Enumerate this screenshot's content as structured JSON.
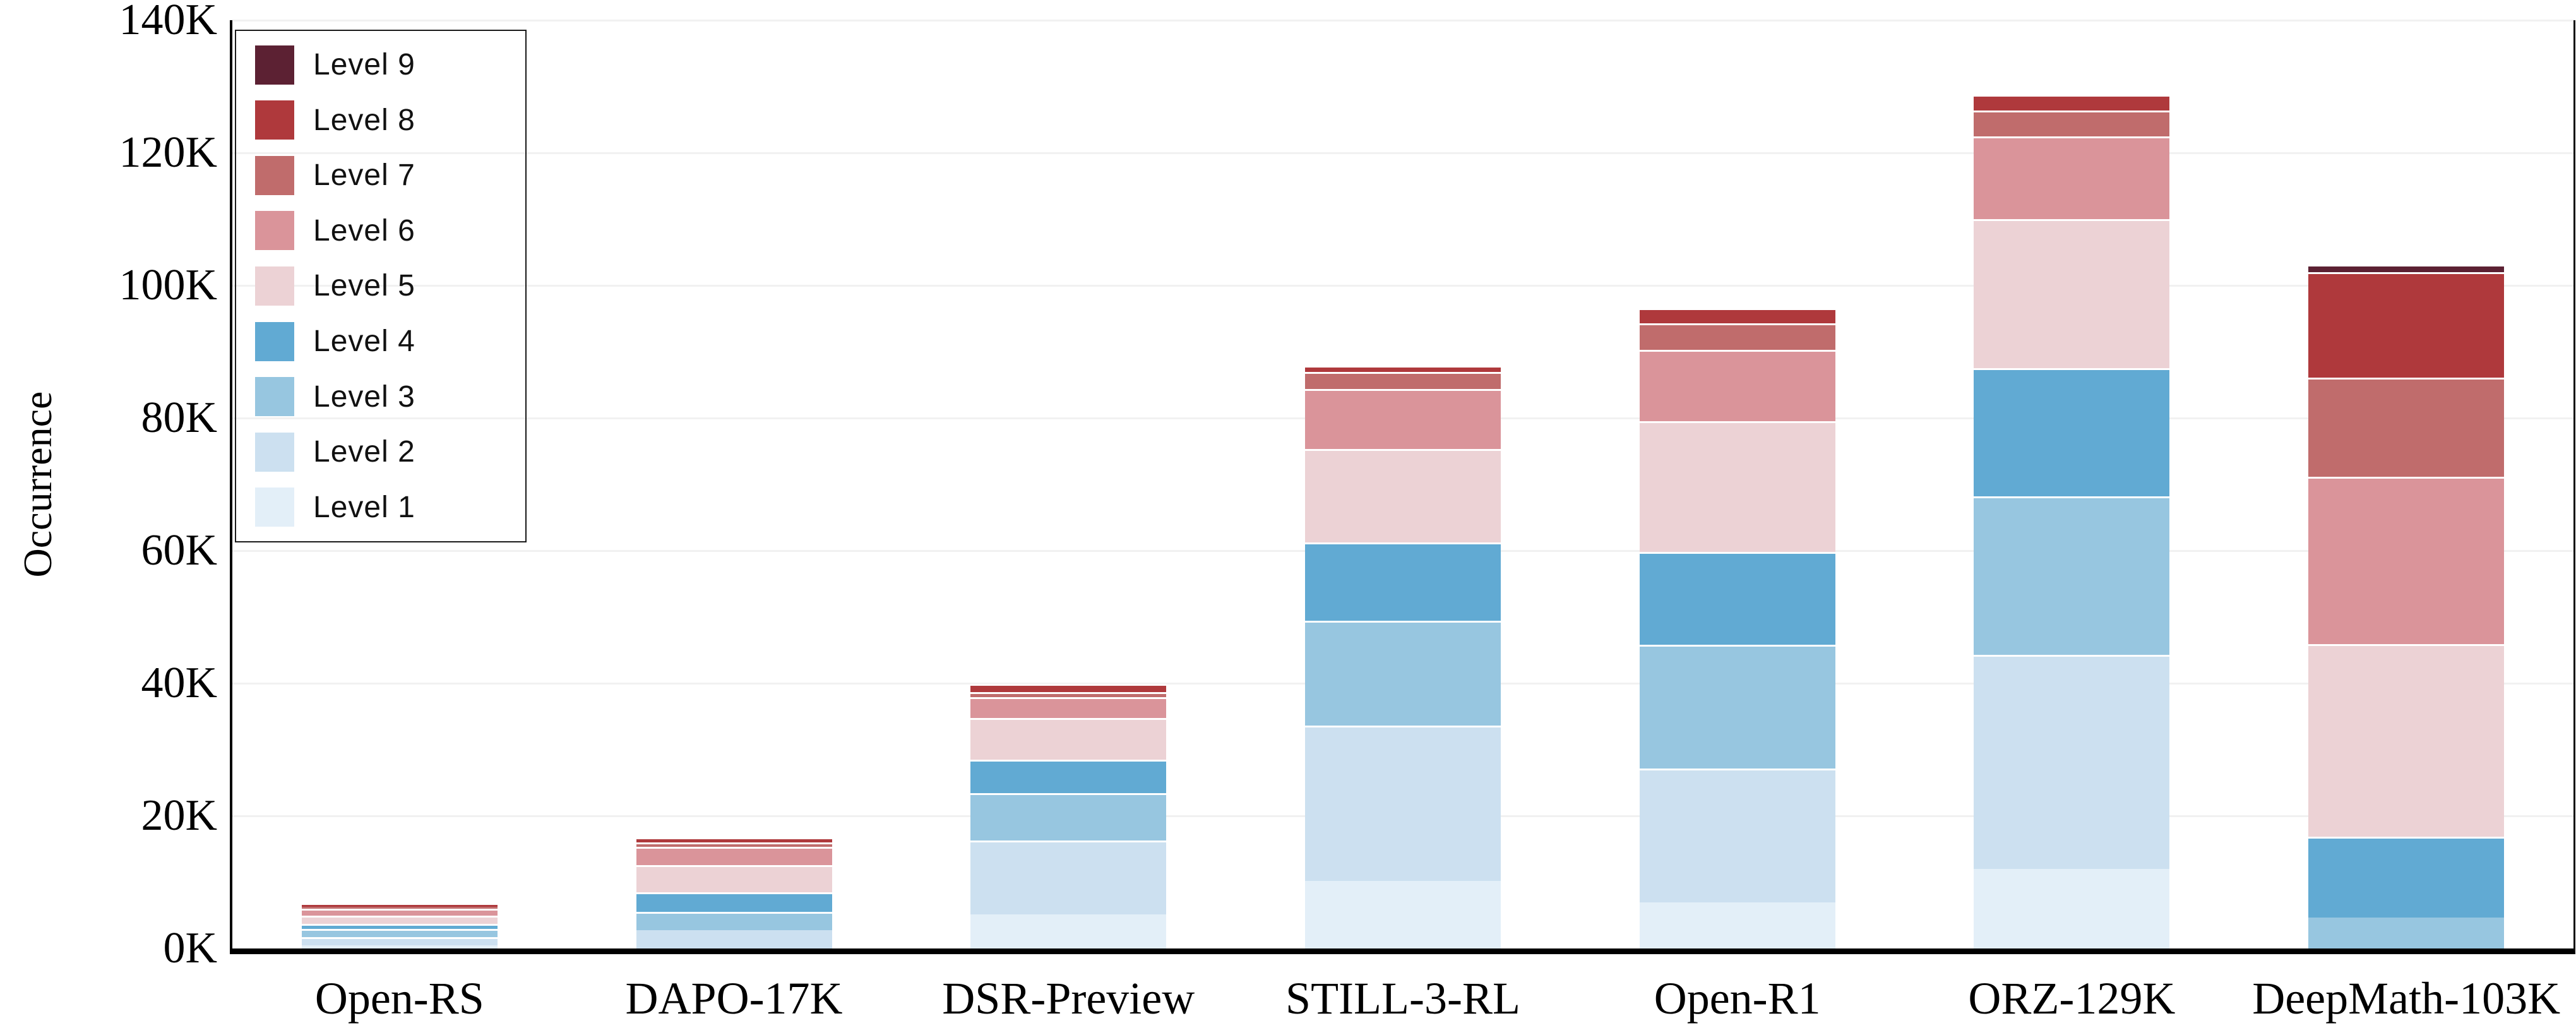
{
  "chart_data": {
    "type": "bar",
    "stacked": true,
    "title": "",
    "xlabel": "",
    "ylabel": "Occurrence",
    "values_unit": "thousands",
    "ylim": [
      0,
      140
    ],
    "grid": true,
    "legend_position": "top-left",
    "yticks": [
      "0K",
      "20K",
      "40K",
      "60K",
      "80K",
      "100K",
      "120K",
      "140K"
    ],
    "categories": [
      "Open-RS",
      "DAPO-17K",
      "DSR-Preview",
      "STILL-3-RL",
      "Open-R1",
      "ORZ-129K",
      "DeepMath-103K"
    ],
    "totals_k": [
      6.9,
      16.8,
      39.9,
      87.9,
      96.6,
      128.8,
      103.1
    ],
    "series": [
      {
        "name": "Level 1",
        "color": "#E3EFF8",
        "values": [
          0.5,
          0.0,
          5.1,
          10.2,
          7.0,
          12.0,
          0.0
        ]
      },
      {
        "name": "Level 2",
        "color": "#CCE0F0",
        "values": [
          1.2,
          2.8,
          11.2,
          23.4,
          20.1,
          32.3,
          0.0
        ]
      },
      {
        "name": "Level 3",
        "color": "#97C6E0",
        "values": [
          1.3,
          2.7,
          7.1,
          15.8,
          18.7,
          23.9,
          4.7
        ]
      },
      {
        "name": "Level 4",
        "color": "#61AAD3",
        "values": [
          0.7,
          3.0,
          5.1,
          11.8,
          14.0,
          19.3,
          12.2
        ]
      },
      {
        "name": "Level 5",
        "color": "#ECD2D5",
        "values": [
          1.3,
          4.1,
          6.3,
          14.1,
          19.7,
          22.5,
          29.0
        ]
      },
      {
        "name": "Level 6",
        "color": "#DA949A",
        "values": [
          1.0,
          2.7,
          3.1,
          9.1,
          10.8,
          12.5,
          25.2
        ]
      },
      {
        "name": "Level 7",
        "color": "#C06C6C",
        "values": [
          0.3,
          0.7,
          0.8,
          2.6,
          4.0,
          3.9,
          15.0
        ]
      },
      {
        "name": "Level 8",
        "color": "#AF393C",
        "values": [
          0.6,
          0.8,
          1.2,
          0.9,
          2.3,
          2.4,
          15.9
        ]
      },
      {
        "name": "Level 9",
        "color": "#5C2133",
        "values": [
          0.0,
          0.0,
          0.0,
          0.0,
          0.0,
          0.0,
          1.1
        ]
      }
    ],
    "legend_labels": [
      "Level 9",
      "Level 8",
      "Level 7",
      "Level 6",
      "Level 5",
      "Level 4",
      "Level 3",
      "Level 2",
      "Level 1"
    ]
  },
  "axis": {
    "y_title": "Occurrence"
  }
}
